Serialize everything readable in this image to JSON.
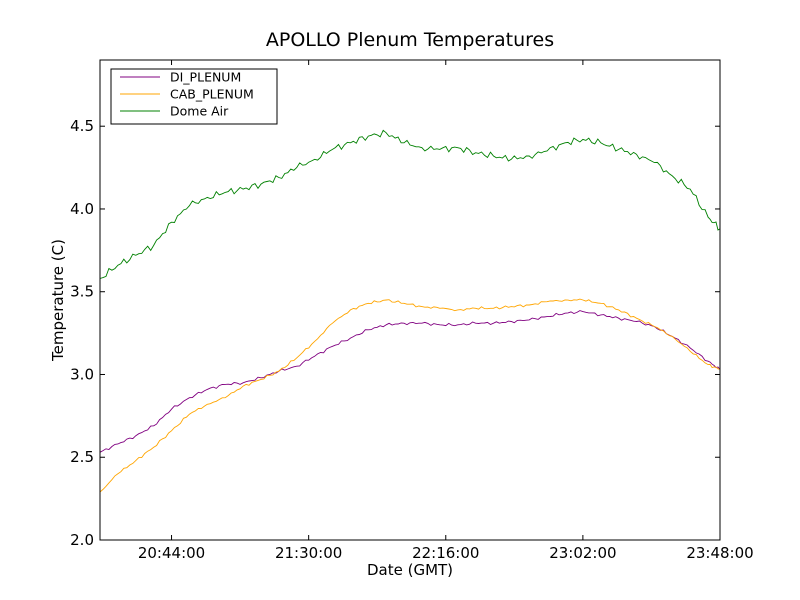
{
  "chart_data": {
    "type": "line",
    "title": "APOLLO Plenum Temperatures",
    "xlabel": "Date (GMT)",
    "ylabel": "Temperature (C)",
    "xlim": [
      1220,
      1428
    ],
    "ylim": [
      2.0,
      4.9
    ],
    "x_ticks": [
      {
        "value": 1244,
        "label": "20:44:00"
      },
      {
        "value": 1290,
        "label": "21:30:00"
      },
      {
        "value": 1336,
        "label": "22:16:00"
      },
      {
        "value": 1382,
        "label": "23:02:00"
      },
      {
        "value": 1428,
        "label": "23:48:00"
      }
    ],
    "y_ticks": [
      {
        "value": 2.0,
        "label": "2.0"
      },
      {
        "value": 2.5,
        "label": "2.5"
      },
      {
        "value": 3.0,
        "label": "3.0"
      },
      {
        "value": 3.5,
        "label": "3.5"
      },
      {
        "value": 4.0,
        "label": "4.0"
      },
      {
        "value": 4.5,
        "label": "4.5"
      }
    ],
    "legend_position": "top-left",
    "x": [
      1220,
      1226,
      1232,
      1238,
      1244,
      1250,
      1256,
      1262,
      1268,
      1274,
      1280,
      1286,
      1292,
      1298,
      1304,
      1310,
      1316,
      1322,
      1328,
      1334,
      1340,
      1346,
      1352,
      1358,
      1364,
      1370,
      1376,
      1382,
      1388,
      1394,
      1400,
      1406,
      1412,
      1418,
      1424,
      1428
    ],
    "series": [
      {
        "name": "DI_PLENUM",
        "color": "#800080",
        "values": [
          2.53,
          2.58,
          2.63,
          2.69,
          2.79,
          2.86,
          2.91,
          2.94,
          2.95,
          2.98,
          3.02,
          3.05,
          3.11,
          3.17,
          3.22,
          3.27,
          3.3,
          3.31,
          3.31,
          3.3,
          3.3,
          3.31,
          3.31,
          3.32,
          3.33,
          3.35,
          3.37,
          3.38,
          3.36,
          3.34,
          3.32,
          3.29,
          3.23,
          3.16,
          3.08,
          3.03
        ]
      },
      {
        "name": "CAB_PLENUM",
        "color": "#ffa500",
        "values": [
          2.29,
          2.4,
          2.48,
          2.56,
          2.66,
          2.76,
          2.82,
          2.86,
          2.93,
          2.97,
          3.02,
          3.1,
          3.2,
          3.31,
          3.39,
          3.43,
          3.45,
          3.43,
          3.41,
          3.4,
          3.39,
          3.4,
          3.4,
          3.41,
          3.42,
          3.44,
          3.45,
          3.45,
          3.43,
          3.39,
          3.34,
          3.29,
          3.23,
          3.14,
          3.06,
          3.03
        ]
      },
      {
        "name": "Dome Air",
        "color": "#008000",
        "values": [
          3.58,
          3.66,
          3.72,
          3.78,
          3.92,
          4.02,
          4.07,
          4.1,
          4.12,
          4.15,
          4.19,
          4.25,
          4.3,
          4.36,
          4.4,
          4.44,
          4.46,
          4.4,
          4.37,
          4.36,
          4.37,
          4.34,
          4.32,
          4.3,
          4.32,
          4.35,
          4.4,
          4.42,
          4.4,
          4.36,
          4.33,
          4.28,
          4.2,
          4.12,
          3.95,
          3.88
        ]
      }
    ]
  }
}
